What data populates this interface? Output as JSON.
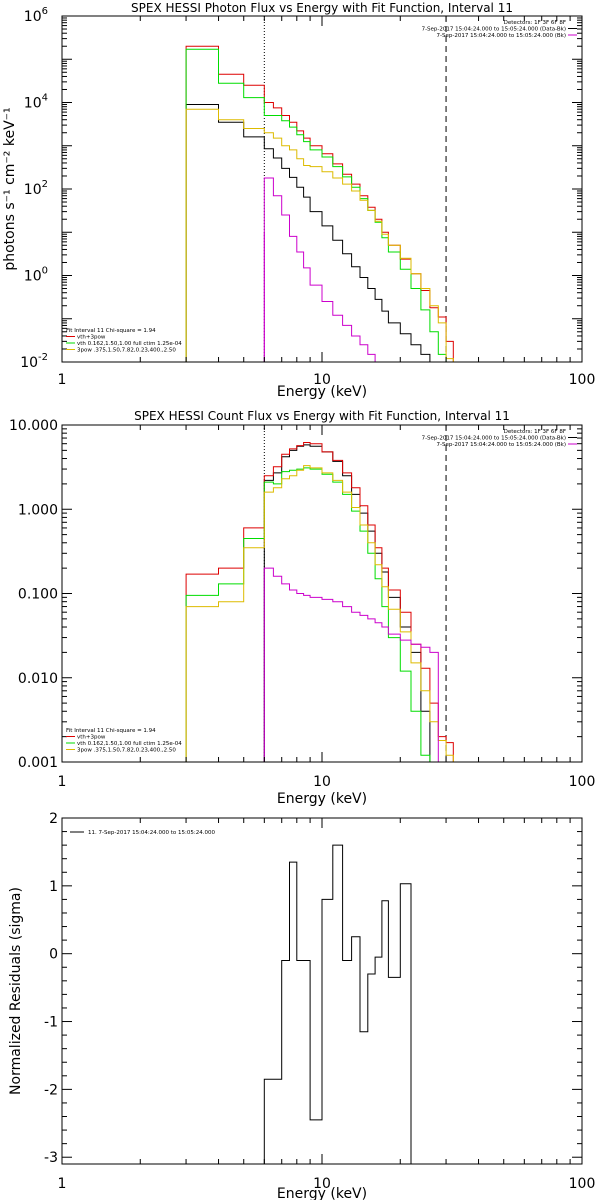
{
  "chart_data": [
    {
      "id": "photon",
      "type": "line",
      "step": true,
      "title": "SPEX HESSI Photon Flux vs Energy with Fit Function, Interval 11",
      "xlabel": "Energy (keV)",
      "ylabel": "photons s⁻¹ cm⁻² keV⁻¹",
      "xscale": "log",
      "yscale": "log",
      "xlim": [
        1,
        100
      ],
      "ylim": [
        0.01,
        1000000
      ],
      "xticks": [
        {
          "v": 1,
          "label": "1"
        },
        {
          "v": 10,
          "label": "10"
        },
        {
          "v": 100,
          "label": "100"
        }
      ],
      "yticks": [
        {
          "v": 0.01,
          "label": "10",
          "sup": "-2"
        },
        {
          "v": 1,
          "label": "10",
          "sup": "0"
        },
        {
          "v": 100,
          "label": "10",
          "sup": "2"
        },
        {
          "v": 10000,
          "label": "10",
          "sup": "4"
        },
        {
          "v": 1000000,
          "label": "10",
          "sup": "6"
        }
      ],
      "vlines": [
        {
          "x": 6,
          "style": "dotted",
          "color": "#000000"
        },
        {
          "x": 6,
          "style": "solid",
          "color": "#cc00cc",
          "y_top": 10
        },
        {
          "x": 30,
          "style": "dashed",
          "color": "#000000"
        }
      ],
      "header_text": [
        "Detectors: 1F 3F 6F 8F",
        "7-Sep-2017 15:04:24.000 to 15:05:24.000 (Data-Bk)",
        "7-Sep-2017 15:04:24.000 to 15:05:24.000 (Bk)"
      ],
      "header_legend_colors": [
        "#000000",
        "#cc00cc"
      ],
      "fit_text": [
        "Fit Interval 11   Chi-square = 1.94",
        "vth+3pow",
        "vth 0.162,1.50,1.00  full ctim 1.25e-04",
        "3pow .375,1.50,7.82,0.23,400.,2.50"
      ],
      "fit_text_colors": [
        "#000000",
        "#dd0000",
        "#00dd00",
        "#ddbb00"
      ],
      "edges": [
        3,
        4,
        5,
        6,
        6.5,
        7,
        7.5,
        8,
        8.5,
        9,
        10,
        11,
        12,
        13,
        14,
        15,
        16,
        17,
        18,
        20,
        22,
        24,
        26,
        28,
        30,
        32
      ],
      "series": [
        {
          "color": "#000000",
          "start": 3,
          "values": [
            9000,
            3500,
            1600,
            850,
            520,
            300,
            185,
            110,
            65,
            30,
            14,
            6.5,
            3.2,
            1.6,
            0.9,
            0.5,
            0.28,
            0.15,
            0.08,
            0.045,
            0.025,
            0.015,
            0.006
          ]
        },
        {
          "color": "#dd0000",
          "values": [
            200000,
            45000,
            25000,
            10000,
            7500,
            5000,
            3500,
            2200,
            1500,
            1000,
            650,
            380,
            220,
            130,
            70,
            38,
            20,
            10,
            5,
            2.4,
            1.1,
            0.45,
            0.18,
            0.11,
            0.03
          ]
        },
        {
          "color": "#00dd00",
          "values": [
            170000,
            28000,
            13000,
            5000,
            5000,
            3800,
            2700,
            1800,
            1250,
            800,
            550,
            330,
            190,
            110,
            60,
            32,
            17,
            7.5,
            3.5,
            1.4,
            0.5,
            0.16,
            0.05,
            0.015,
            0.005
          ]
        },
        {
          "color": "#ddbb00",
          "values": [
            7000,
            4000,
            2500,
            2000,
            1500,
            1000,
            800,
            500,
            350,
            330,
            250,
            180,
            130,
            90,
            55,
            32,
            18,
            9,
            5,
            2.5,
            1.1,
            0.5,
            0.2,
            0.08,
            0.012
          ]
        },
        {
          "color": "#cc00cc",
          "start": 6,
          "values": [
            180,
            70,
            25,
            8,
            3.5,
            1.5,
            0.6,
            0.25,
            0.12,
            0.07,
            0.04,
            0.025,
            0.015,
            0.01,
            0.008,
            0.006
          ]
        }
      ]
    },
    {
      "id": "count",
      "type": "line",
      "step": true,
      "title": "SPEX HESSI Count Flux vs Energy with Fit Function, Interval 11",
      "xlabel": "Energy (keV)",
      "ylabel": "",
      "xscale": "log",
      "yscale": "log",
      "xlim": [
        1,
        100
      ],
      "ylim": [
        0.001,
        10
      ],
      "xticks": [
        {
          "v": 1,
          "label": "1"
        },
        {
          "v": 10,
          "label": "10"
        },
        {
          "v": 100,
          "label": "100"
        }
      ],
      "yticks": [
        {
          "v": 0.001,
          "label": "0.001"
        },
        {
          "v": 0.01,
          "label": "0.010"
        },
        {
          "v": 0.1,
          "label": "0.100"
        },
        {
          "v": 1,
          "label": "1.000"
        },
        {
          "v": 10,
          "label": "10.000"
        }
      ],
      "vlines": [
        {
          "x": 6,
          "style": "dotted",
          "color": "#000000"
        },
        {
          "x": 6,
          "style": "solid",
          "color": "#cc00cc",
          "y_top": 0.2
        },
        {
          "x": 30,
          "style": "dashed",
          "color": "#000000"
        }
      ],
      "header_text": [
        "Detectors: 1F 3F 6F 8F",
        "7-Sep-2017 15:04:24.000 to 15:05:24.000 (Data-Bk)",
        "7-Sep-2017 15:04:24.000 to 15:05:24.000 (Bk)"
      ],
      "header_legend_colors": [
        "#000000",
        "#cc00cc"
      ],
      "fit_text": [
        "Fit Interval 11   Chi-square = 1.94",
        "vth+3pow",
        "vth 0.162,1.50,1.00  full ctim 1.25e-04",
        "3pow .375,1.50,7.82,0.23,400.,2.50"
      ],
      "fit_text_colors": [
        "#000000",
        "#dd0000",
        "#00dd00",
        "#ddbb00"
      ],
      "edges": [
        3,
        4,
        5,
        6,
        6.5,
        7,
        7.5,
        8,
        8.5,
        9,
        10,
        11,
        12,
        13,
        14,
        15,
        16,
        17,
        18,
        20,
        22,
        24,
        26,
        28,
        30,
        32
      ],
      "series": [
        {
          "color": "#000000",
          "start": 6,
          "values": [
            2.2,
            2.7,
            4.2,
            5.0,
            5.6,
            5.8,
            5.6,
            4.8,
            3.7,
            2.5,
            1.5,
            0.9,
            0.55,
            0.3,
            0.18,
            0.09,
            0.04,
            0.02,
            0.004
          ]
        },
        {
          "color": "#dd0000",
          "values": [
            0.17,
            0.2,
            0.6,
            2.5,
            3.2,
            4.5,
            5.2,
            5.7,
            6.2,
            6.0,
            4.8,
            3.8,
            2.7,
            1.8,
            1.1,
            0.65,
            0.35,
            0.2,
            0.11,
            0.06,
            0.025,
            0.013,
            0.005,
            0.002,
            0.0017
          ]
        },
        {
          "color": "#00dd00",
          "values": [
            0.095,
            0.13,
            0.45,
            2.1,
            2.0,
            2.8,
            2.9,
            3.0,
            3.1,
            3.0,
            2.6,
            2.1,
            1.5,
            0.95,
            0.55,
            0.3,
            0.15,
            0.07,
            0.03,
            0.012,
            0.004,
            0.0012,
            0.0009,
            0.0008,
            0.0008
          ]
        },
        {
          "color": "#ddbb00",
          "values": [
            0.07,
            0.08,
            0.35,
            1.6,
            1.8,
            2.3,
            2.5,
            2.9,
            3.3,
            3.1,
            2.7,
            2.2,
            1.6,
            1.05,
            0.65,
            0.4,
            0.22,
            0.12,
            0.065,
            0.035,
            0.015,
            0.007,
            0.003,
            0.0018,
            0.0012
          ]
        },
        {
          "color": "#cc00cc",
          "start": 6,
          "values": [
            0.2,
            0.16,
            0.13,
            0.11,
            0.1,
            0.095,
            0.09,
            0.085,
            0.08,
            0.07,
            0.06,
            0.055,
            0.05,
            0.045,
            0.04,
            0.033,
            0.028,
            0.025,
            0.023,
            0.02
          ]
        }
      ]
    },
    {
      "id": "resid",
      "type": "line",
      "step": true,
      "title": "",
      "xlabel": "Energy (keV)",
      "ylabel": "Normalized Residuals (sigma)",
      "xscale": "log",
      "yscale": "linear",
      "xlim": [
        1,
        100
      ],
      "ylim": [
        -3.1,
        2
      ],
      "xticks": [
        {
          "v": 1,
          "label": "1"
        },
        {
          "v": 10,
          "label": "10"
        },
        {
          "v": 100,
          "label": "100"
        }
      ],
      "yticks": [
        {
          "v": -3,
          "label": "-3"
        },
        {
          "v": -2,
          "label": "-2"
        },
        {
          "v": -1,
          "label": "-1"
        },
        {
          "v": 0,
          "label": "0"
        },
        {
          "v": 1,
          "label": "1"
        },
        {
          "v": 2,
          "label": "2"
        }
      ],
      "legend": {
        "text": "11.  7-Sep-2017 15:04:24.000 to 15:05:24.000",
        "color": "#000000"
      },
      "edges": [
        6,
        7,
        7.5,
        8,
        9,
        10,
        11,
        12,
        13,
        14,
        15,
        16,
        17,
        18,
        20,
        22,
        24,
        26,
        28,
        30
      ],
      "series": [
        {
          "color": "#000000",
          "drop_to_bottom": true,
          "values": [
            -1.85,
            -0.1,
            1.35,
            -0.1,
            -2.45,
            0.8,
            1.6,
            -0.1,
            0.25,
            -1.15,
            -0.3,
            -0.05,
            0.78,
            -0.35,
            1.03
          ]
        }
      ]
    }
  ]
}
